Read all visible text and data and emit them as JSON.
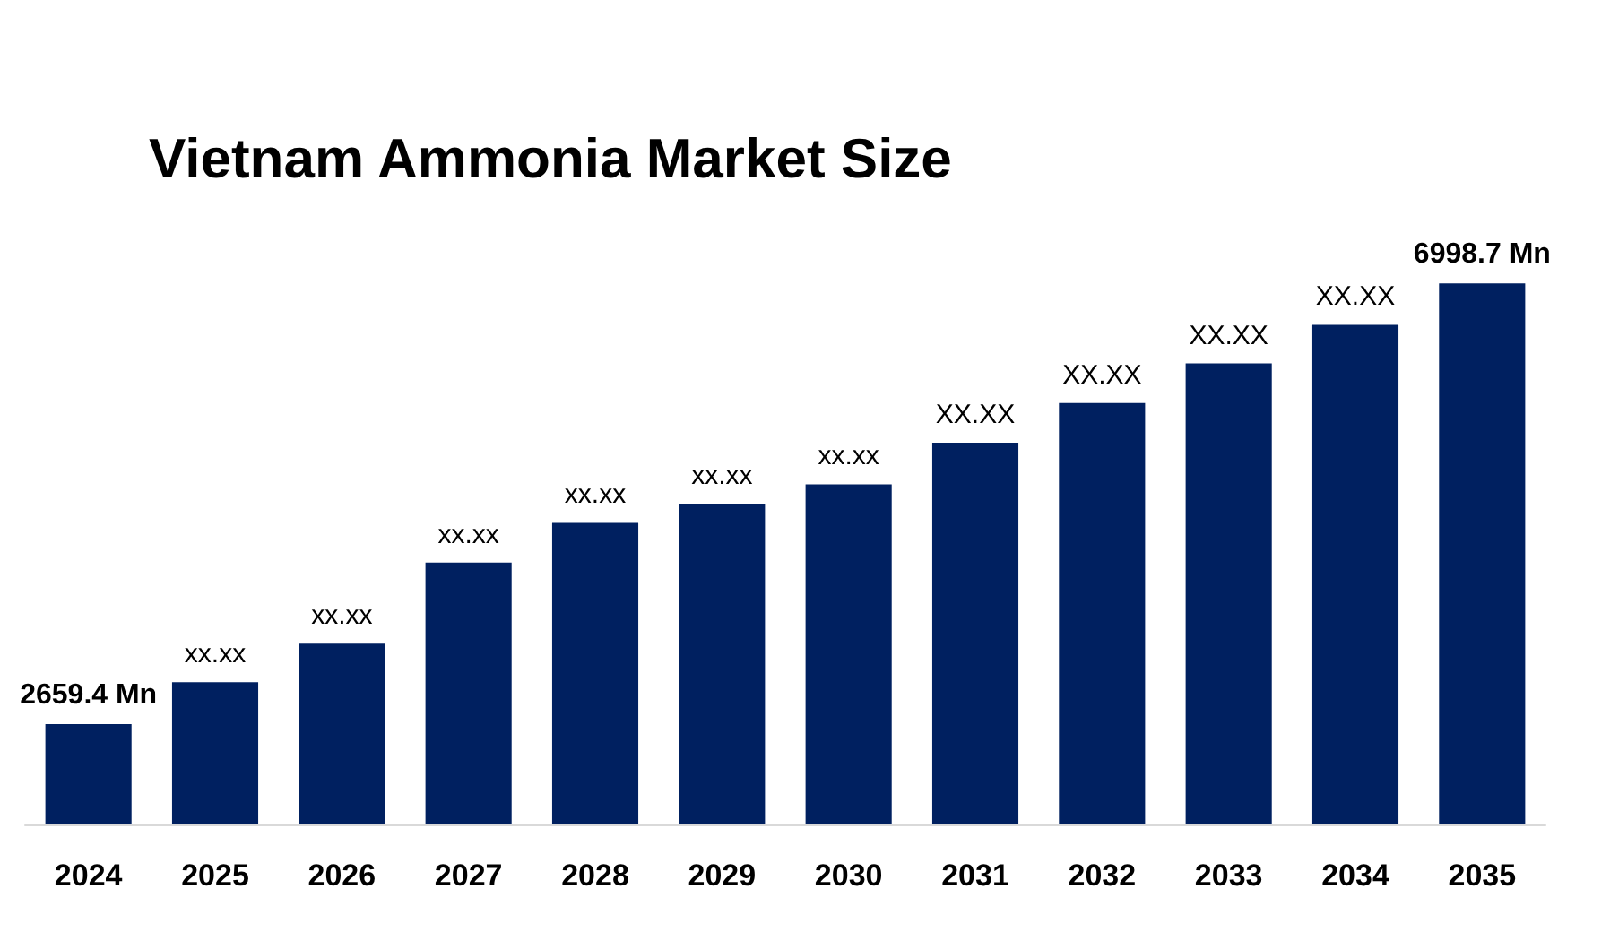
{
  "chart_data": {
    "type": "bar",
    "title": "Vietnam Ammonia Market Size",
    "categories": [
      "2024",
      "2025",
      "2026",
      "2027",
      "2028",
      "2029",
      "2030",
      "2031",
      "2032",
      "2033",
      "2034",
      "2035"
    ],
    "values": [
      2659.4,
      3070,
      3450,
      4250,
      4640,
      4830,
      5020,
      5430,
      5820,
      6210,
      6590,
      6998.7
    ],
    "value_labels": [
      "2659.4 Mn",
      "xx.xx",
      "xx.xx",
      "xx.xx",
      "xx.xx",
      "xx.xx",
      "xx.xx",
      "XX.XX",
      "XX.XX",
      "XX.XX",
      "XX.XX",
      "6998.7 Mn"
    ],
    "color": "#002060",
    "ylim": [
      1670,
      7000
    ],
    "tick_labels": "x"
  }
}
